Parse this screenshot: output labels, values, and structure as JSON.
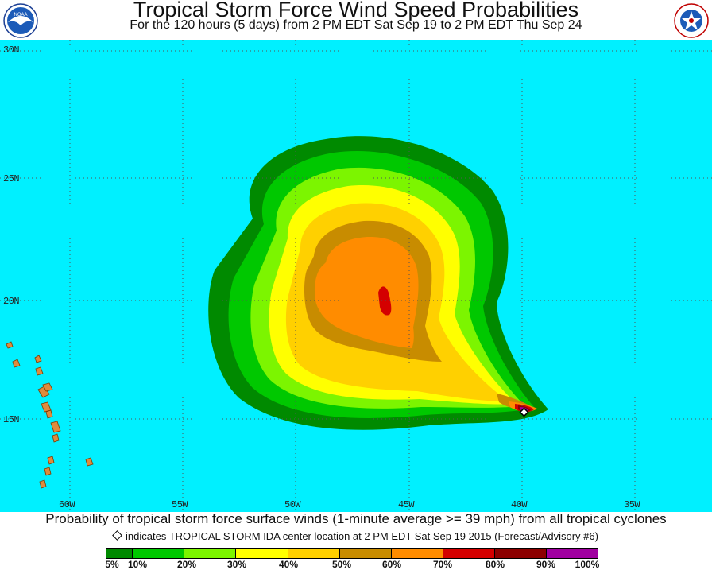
{
  "header": {
    "title": "Tropical Storm Force Wind Speed Probabilities",
    "subtitle": "For the 120 hours (5 days) from 2 PM EDT Sat Sep 19 to 2 PM EDT Thu Sep 24"
  },
  "logos": {
    "noaa": {
      "text": "NOAA",
      "icon": "noaa-logo"
    },
    "nws": {
      "text": "NATIONAL WEATHER SERVICE",
      "icon": "nws-logo"
    }
  },
  "map": {
    "lat_labels": [
      "30N",
      "25N",
      "20N",
      "15N"
    ],
    "lon_labels": [
      "60W",
      "55W",
      "50W",
      "45W",
      "40W",
      "35W"
    ],
    "ocean_color": "#00f0ff",
    "land_color": "#e08a3c",
    "storm_center": {
      "lat": 15.3,
      "lon": 40.1
    }
  },
  "caption": "Probability of tropical storm force surface winds (1-minute average >= 39 mph) from all tropical cyclones",
  "note": "indicates TROPICAL STORM IDA center location at 2 PM EDT Sat Sep 19 2015 (Forecast/Advisory #6)",
  "legend": {
    "labels": [
      "5%",
      "10%",
      "20%",
      "30%",
      "40%",
      "50%",
      "60%",
      "70%",
      "80%",
      "90%",
      "100%"
    ],
    "colors": [
      "#008a00",
      "#00c800",
      "#7cf500",
      "#ffff00",
      "#ffd000",
      "#c88c00",
      "#ff8c00",
      "#d40000",
      "#8c0000",
      "#a000a0"
    ]
  }
}
